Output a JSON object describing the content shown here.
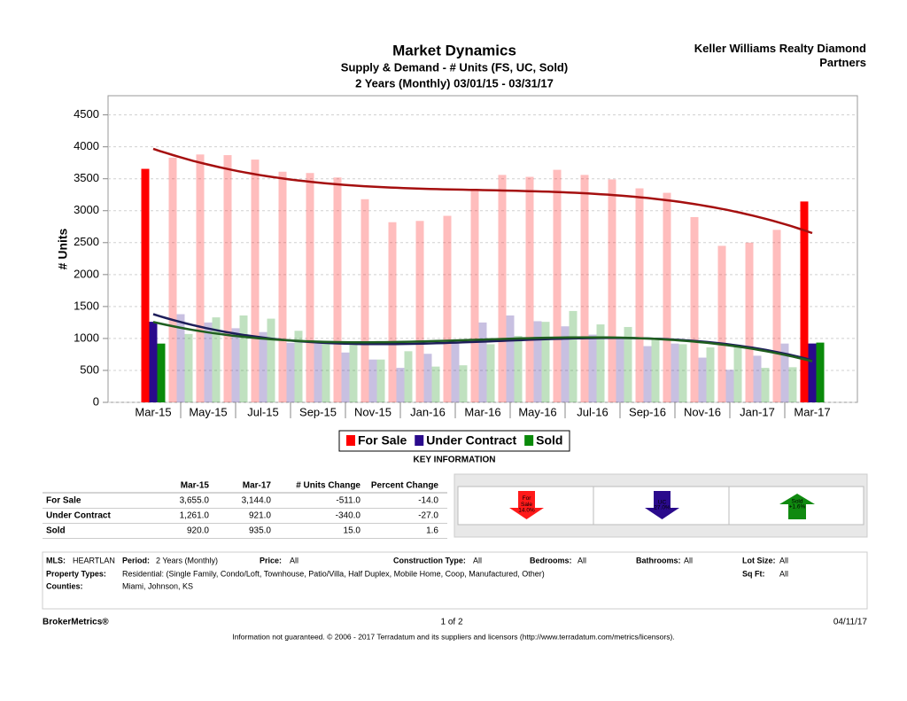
{
  "chart_data": {
    "type": "bar",
    "title": "Market Dynamics",
    "subtitle": "Supply & Demand - # Units (FS, UC, Sold)",
    "period": "2 Years (Monthly) 03/01/15 - 03/31/17",
    "y_label": "# Units",
    "categories": [
      "Mar-15",
      null,
      "May-15",
      null,
      "Jul-15",
      null,
      "Sep-15",
      null,
      "Nov-15",
      null,
      "Jan-16",
      null,
      "Mar-16",
      null,
      "May-16",
      null,
      "Jul-16",
      null,
      "Sep-16",
      null,
      "Nov-16",
      null,
      "Jan-17",
      null,
      "Mar-17"
    ],
    "series": [
      {
        "name": "For Sale",
        "color": "#ff0000",
        "trend_color": "#a50f0f",
        "values": [
          3655,
          3830,
          3880,
          3870,
          3800,
          3610,
          3590,
          3520,
          3180,
          2820,
          2840,
          2920,
          3330,
          3560,
          3530,
          3640,
          3560,
          3490,
          3350,
          3280,
          2900,
          2450,
          2500,
          2700,
          3144
        ]
      },
      {
        "name": "Under Contract",
        "color": "#2a0a8c",
        "trend_color": "#1e1e5a",
        "values": [
          1261,
          1380,
          1250,
          1160,
          1100,
          930,
          920,
          780,
          670,
          540,
          760,
          920,
          1250,
          1360,
          1270,
          1190,
          1060,
          1020,
          880,
          920,
          700,
          510,
          730,
          920,
          921
        ]
      },
      {
        "name": "Sold",
        "color": "#0a8a0a",
        "trend_color": "#1f5e1f",
        "values": [
          920,
          1070,
          1330,
          1360,
          1310,
          1120,
          920,
          930,
          670,
          800,
          560,
          580,
          910,
          1040,
          1260,
          1430,
          1220,
          1180,
          1000,
          910,
          860,
          870,
          540,
          550,
          935
        ]
      }
    ],
    "ylim": [
      0,
      4800
    ],
    "yticks": [
      0,
      500,
      1000,
      1500,
      2000,
      2500,
      3000,
      3500,
      4000,
      4500
    ],
    "grid": true,
    "trend_lines": true,
    "legend": "bottom"
  },
  "header": {
    "company": "Keller Williams Realty Diamond Partners"
  },
  "key_information": {
    "title": "KEY INFORMATION",
    "columns": [
      "Mar-15",
      "Mar-17",
      "# Units Change",
      "Percent Change"
    ],
    "rows": [
      [
        "For Sale",
        "3,655.0",
        "3,144.0",
        "-511.0",
        "-14.0"
      ],
      [
        "Under Contract",
        "1,261.0",
        "921.0",
        "-340.0",
        "-27.0"
      ],
      [
        "Sold",
        "920.0",
        "935.0",
        "15.0",
        "1.6"
      ]
    ],
    "indicators": [
      {
        "label": "For Sale",
        "change": "14.0%"
      },
      {
        "label": "UC",
        "change": "27.0%"
      },
      {
        "label": "Sold",
        "change": "+1.6%"
      }
    ]
  },
  "criteria": [
    {
      "label": "MLS:",
      "value": "HEARTLAN"
    },
    {
      "label": "Period:",
      "value": "2 Years (Monthly)"
    },
    {
      "label": "Price:",
      "value": "All"
    },
    {
      "label": "Construction Type:",
      "value": "All"
    },
    {
      "label": "Bedrooms:",
      "value": "All"
    },
    {
      "label": "Bathrooms:",
      "value": "All"
    },
    {
      "label": "Lot Size:",
      "value": "All"
    },
    {
      "label": "Property Types:",
      "value": "Residential: (Single Family, Condo/Loft, Townhouse, Patio/Villa, Half Duplex, Mobile Home, Coop, Manufactured, Other)"
    },
    {
      "label": "Sq Ft:",
      "value": "All"
    },
    {
      "label": "Counties:",
      "value": "Miami, Johnson, KS"
    }
  ],
  "footer": {
    "brand": "BrokerMetrics®",
    "page": "1 of 2",
    "date": "04/11/17",
    "disclaimer": "Information not guaranteed.  © 2006 - 2017 Terradatum and its suppliers and licensors (http://www.terradatum.com/metrics/licensors)."
  }
}
